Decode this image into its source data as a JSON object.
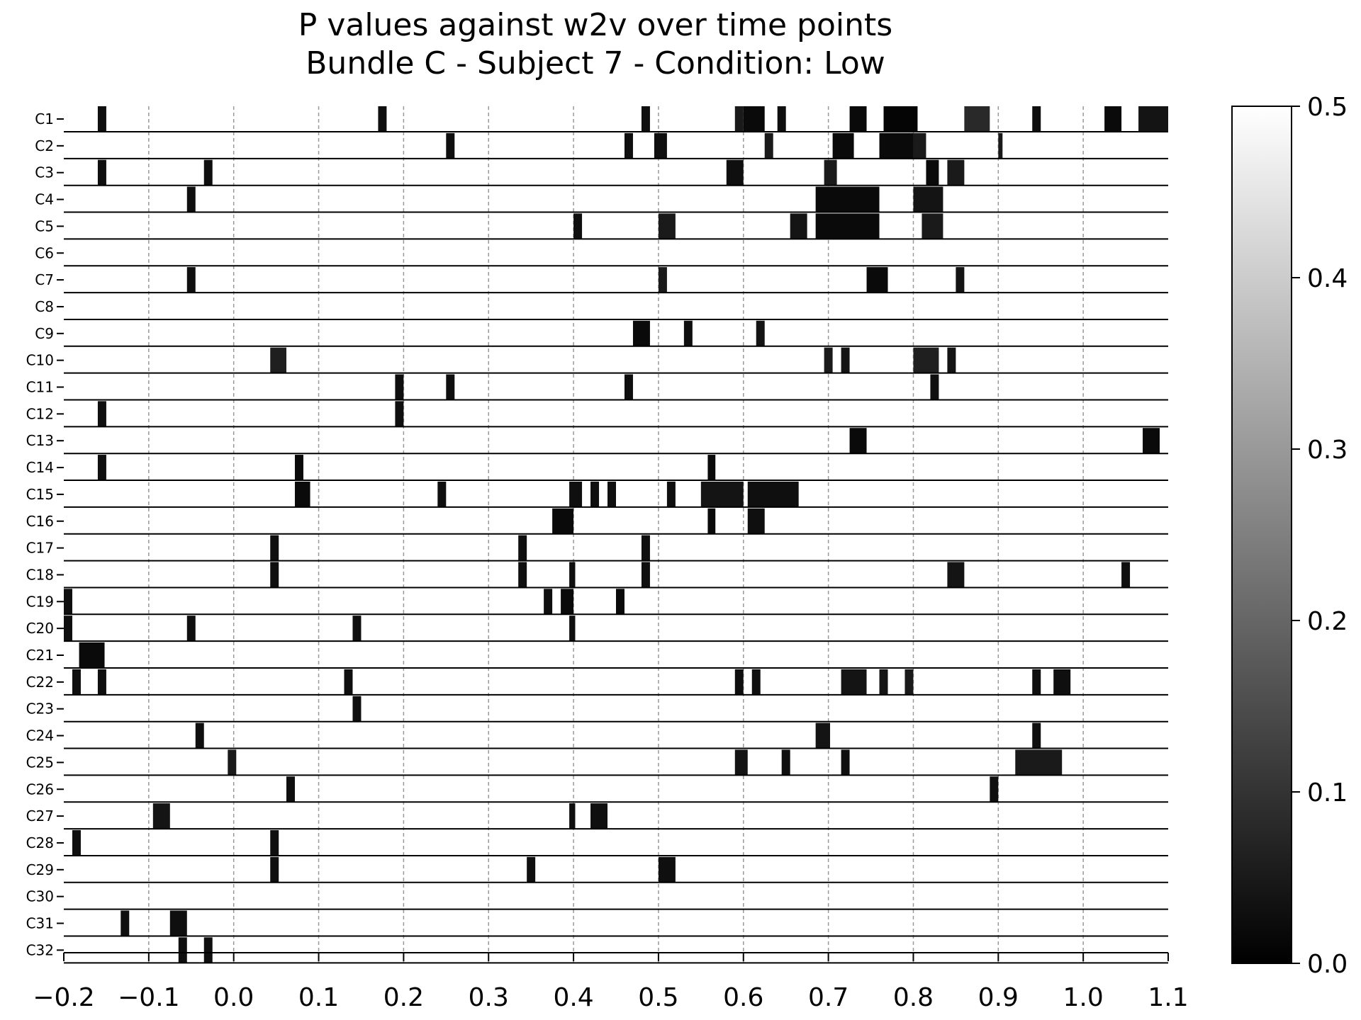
{
  "chart_data": {
    "type": "heatmap",
    "title": "P values against w2v over time points",
    "subtitle": "Bundle C - Subject 7 - Condition: Low",
    "xlabel": "",
    "ylabel": "",
    "xlim": [
      -0.2,
      1.1
    ],
    "x_ticks": [
      "−0.2",
      "−0.1",
      "0.0",
      "0.1",
      "0.2",
      "0.3",
      "0.4",
      "0.5",
      "0.6",
      "0.7",
      "0.8",
      "0.9",
      "1.0",
      "1.1"
    ],
    "x_tick_values": [
      -0.2,
      -0.1,
      0.0,
      0.1,
      0.2,
      0.3,
      0.4,
      0.5,
      0.6,
      0.7,
      0.8,
      0.9,
      1.0,
      1.1
    ],
    "grid": "vertical dashed at x ticks",
    "colorscale": "gray (black = 0.0, white = 0.5)",
    "colorbar": {
      "range": [
        0.0,
        0.5
      ],
      "ticks": [
        "0.0",
        "0.1",
        "0.2",
        "0.3",
        "0.4",
        "0.5"
      ],
      "tick_values": [
        0.0,
        0.1,
        0.2,
        0.3,
        0.4,
        0.5
      ]
    },
    "rows": [
      {
        "label": "C1",
        "segments": [
          [
            -0.16,
            -0.15,
            0.03
          ],
          [
            0.17,
            0.18,
            0.03
          ],
          [
            0.48,
            0.49,
            0.03
          ],
          [
            0.59,
            0.6,
            0.05
          ],
          [
            0.6,
            0.625,
            0.02
          ],
          [
            0.64,
            0.65,
            0.03
          ],
          [
            0.725,
            0.745,
            0.02
          ],
          [
            0.765,
            0.805,
            0.01
          ],
          [
            0.86,
            0.89,
            0.08
          ],
          [
            0.94,
            0.95,
            0.03
          ],
          [
            1.025,
            1.045,
            0.02
          ],
          [
            1.065,
            1.1,
            0.04
          ]
        ]
      },
      {
        "label": "C2",
        "segments": [
          [
            0.25,
            0.26,
            0.03
          ],
          [
            0.46,
            0.47,
            0.03
          ],
          [
            0.495,
            0.51,
            0.03
          ],
          [
            0.625,
            0.635,
            0.05
          ],
          [
            0.705,
            0.73,
            0.02
          ],
          [
            0.76,
            0.8,
            0.02
          ],
          [
            0.8,
            0.815,
            0.05
          ],
          [
            0.9,
            0.905,
            0.05
          ]
        ]
      },
      {
        "label": "C3",
        "segments": [
          [
            -0.16,
            -0.15,
            0.03
          ],
          [
            -0.035,
            -0.025,
            0.03
          ],
          [
            0.58,
            0.6,
            0.03
          ],
          [
            0.695,
            0.71,
            0.05
          ],
          [
            0.815,
            0.83,
            0.02
          ],
          [
            0.84,
            0.86,
            0.05
          ]
        ]
      },
      {
        "label": "C4",
        "segments": [
          [
            -0.055,
            -0.045,
            0.03
          ],
          [
            0.685,
            0.76,
            0.02
          ],
          [
            0.8,
            0.835,
            0.04
          ]
        ]
      },
      {
        "label": "C5",
        "segments": [
          [
            0.4,
            0.41,
            0.03
          ],
          [
            0.5,
            0.52,
            0.05
          ],
          [
            0.655,
            0.675,
            0.04
          ],
          [
            0.685,
            0.76,
            0.02
          ],
          [
            0.81,
            0.835,
            0.05
          ]
        ]
      },
      {
        "label": "C6",
        "segments": []
      },
      {
        "label": "C7",
        "segments": [
          [
            -0.055,
            -0.045,
            0.03
          ],
          [
            0.5,
            0.51,
            0.05
          ],
          [
            0.745,
            0.77,
            0.02
          ],
          [
            0.85,
            0.86,
            0.04
          ]
        ]
      },
      {
        "label": "C8",
        "segments": []
      },
      {
        "label": "C9",
        "segments": [
          [
            0.47,
            0.49,
            0.02
          ],
          [
            0.53,
            0.54,
            0.03
          ],
          [
            0.615,
            0.625,
            0.04
          ]
        ]
      },
      {
        "label": "C10",
        "segments": [
          [
            0.043,
            0.062,
            0.06
          ],
          [
            0.695,
            0.705,
            0.05
          ],
          [
            0.715,
            0.725,
            0.04
          ],
          [
            0.8,
            0.83,
            0.06
          ],
          [
            0.84,
            0.85,
            0.04
          ]
        ]
      },
      {
        "label": "C11",
        "segments": [
          [
            0.19,
            0.2,
            0.03
          ],
          [
            0.25,
            0.26,
            0.03
          ],
          [
            0.46,
            0.47,
            0.03
          ],
          [
            0.82,
            0.83,
            0.03
          ]
        ]
      },
      {
        "label": "C12",
        "segments": [
          [
            -0.16,
            -0.15,
            0.03
          ],
          [
            0.19,
            0.2,
            0.03
          ]
        ]
      },
      {
        "label": "C13",
        "segments": [
          [
            0.725,
            0.745,
            0.02
          ],
          [
            1.07,
            1.09,
            0.02
          ]
        ]
      },
      {
        "label": "C14",
        "segments": [
          [
            -0.16,
            -0.15,
            0.03
          ],
          [
            0.072,
            0.082,
            0.02
          ],
          [
            0.558,
            0.567,
            0.02
          ]
        ]
      },
      {
        "label": "C15",
        "segments": [
          [
            0.072,
            0.09,
            0.02
          ],
          [
            0.24,
            0.25,
            0.03
          ],
          [
            0.395,
            0.41,
            0.03
          ],
          [
            0.42,
            0.43,
            0.03
          ],
          [
            0.44,
            0.45,
            0.03
          ],
          [
            0.51,
            0.52,
            0.03
          ],
          [
            0.55,
            0.6,
            0.04
          ],
          [
            0.605,
            0.665,
            0.03
          ]
        ]
      },
      {
        "label": "C16",
        "segments": [
          [
            0.375,
            0.4,
            0.02
          ],
          [
            0.558,
            0.567,
            0.02
          ],
          [
            0.605,
            0.625,
            0.03
          ]
        ]
      },
      {
        "label": "C17",
        "segments": [
          [
            0.043,
            0.053,
            0.03
          ],
          [
            0.335,
            0.345,
            0.03
          ],
          [
            0.48,
            0.49,
            0.03
          ]
        ]
      },
      {
        "label": "C18",
        "segments": [
          [
            0.043,
            0.053,
            0.03
          ],
          [
            0.335,
            0.345,
            0.03
          ],
          [
            0.395,
            0.402,
            0.03
          ],
          [
            0.48,
            0.49,
            0.03
          ],
          [
            0.84,
            0.86,
            0.04
          ],
          [
            1.045,
            1.055,
            0.03
          ]
        ]
      },
      {
        "label": "C19",
        "segments": [
          [
            -0.2,
            -0.19,
            0.03
          ],
          [
            0.365,
            0.375,
            0.03
          ],
          [
            0.385,
            0.4,
            0.02
          ],
          [
            0.45,
            0.46,
            0.02
          ]
        ]
      },
      {
        "label": "C20",
        "segments": [
          [
            -0.2,
            -0.19,
            0.03
          ],
          [
            -0.055,
            -0.045,
            0.03
          ],
          [
            0.14,
            0.15,
            0.03
          ],
          [
            0.395,
            0.402,
            0.03
          ]
        ]
      },
      {
        "label": "C21",
        "segments": [
          [
            -0.182,
            -0.152,
            0.02
          ]
        ]
      },
      {
        "label": "C22",
        "segments": [
          [
            -0.19,
            -0.18,
            0.03
          ],
          [
            -0.16,
            -0.15,
            0.03
          ],
          [
            0.13,
            0.14,
            0.03
          ],
          [
            0.59,
            0.6,
            0.03
          ],
          [
            0.61,
            0.62,
            0.03
          ],
          [
            0.715,
            0.745,
            0.04
          ],
          [
            0.76,
            0.77,
            0.04
          ],
          [
            0.79,
            0.8,
            0.05
          ],
          [
            0.94,
            0.95,
            0.03
          ],
          [
            0.965,
            0.985,
            0.03
          ]
        ]
      },
      {
        "label": "C23",
        "segments": [
          [
            0.14,
            0.15,
            0.03
          ]
        ]
      },
      {
        "label": "C24",
        "segments": [
          [
            -0.045,
            -0.035,
            0.03
          ],
          [
            0.685,
            0.702,
            0.04
          ],
          [
            0.94,
            0.95,
            0.03
          ]
        ]
      },
      {
        "label": "C25",
        "segments": [
          [
            -0.007,
            0.003,
            0.05
          ],
          [
            0.59,
            0.605,
            0.04
          ],
          [
            0.645,
            0.655,
            0.03
          ],
          [
            0.715,
            0.725,
            0.03
          ],
          [
            0.92,
            0.975,
            0.05
          ]
        ]
      },
      {
        "label": "C26",
        "segments": [
          [
            0.062,
            0.072,
            0.03
          ],
          [
            0.89,
            0.9,
            0.03
          ]
        ]
      },
      {
        "label": "C27",
        "segments": [
          [
            -0.095,
            -0.075,
            0.04
          ],
          [
            0.395,
            0.402,
            0.03
          ],
          [
            0.42,
            0.44,
            0.03
          ]
        ]
      },
      {
        "label": "C28",
        "segments": [
          [
            -0.19,
            -0.18,
            0.03
          ],
          [
            0.043,
            0.053,
            0.03
          ]
        ]
      },
      {
        "label": "C29",
        "segments": [
          [
            0.043,
            0.053,
            0.03
          ],
          [
            0.345,
            0.355,
            0.03
          ],
          [
            0.5,
            0.52,
            0.03
          ]
        ]
      },
      {
        "label": "C30",
        "segments": []
      },
      {
        "label": "C31",
        "segments": [
          [
            -0.133,
            -0.123,
            0.03
          ],
          [
            -0.075,
            -0.055,
            0.03
          ]
        ]
      },
      {
        "label": "C32",
        "segments": [
          [
            -0.065,
            -0.055,
            0.03
          ],
          [
            -0.035,
            -0.025,
            0.03
          ]
        ]
      }
    ]
  }
}
